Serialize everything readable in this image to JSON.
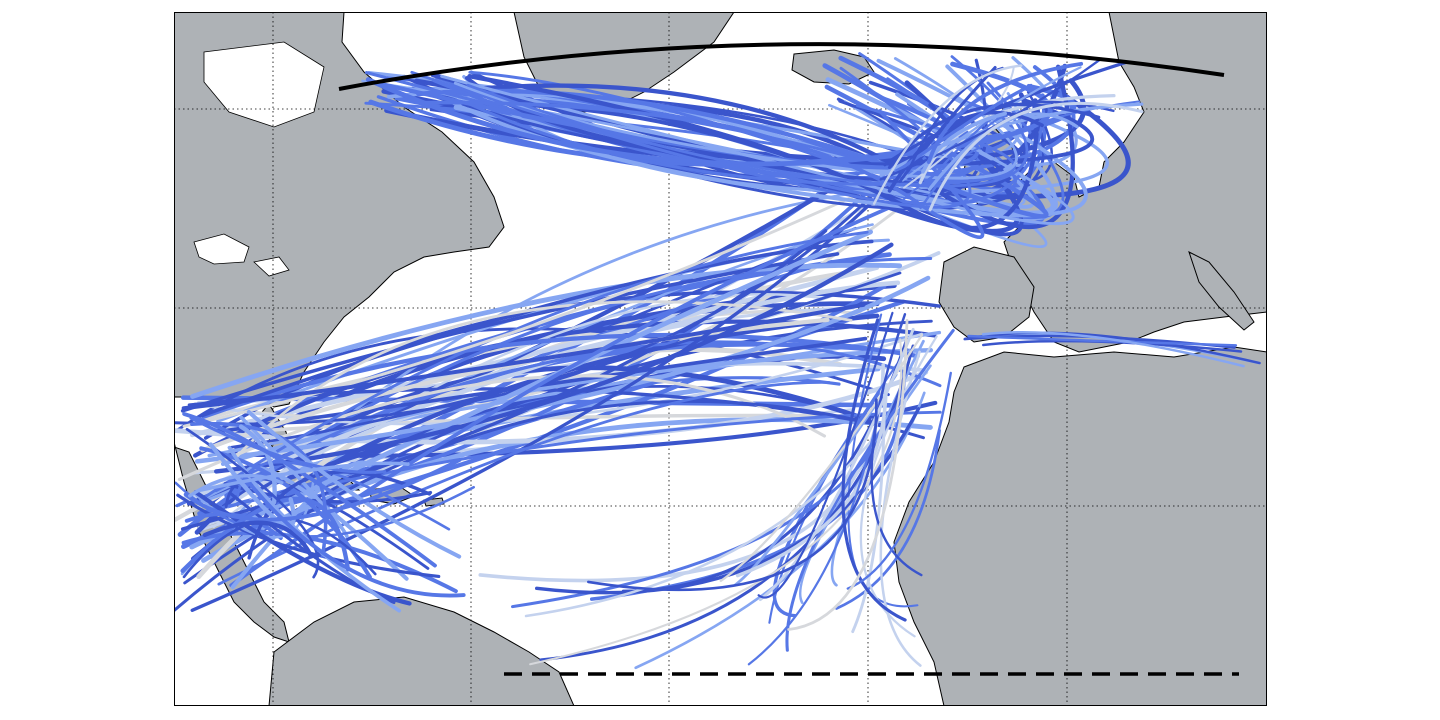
{
  "map": {
    "type": "ocean-trajectory-map",
    "region": "North Atlantic",
    "colors": {
      "land": "#aeb2b6",
      "ocean": "#ffffff",
      "coastline": "#000000",
      "trajectory_dark": "#3a55cc",
      "trajectory_medium": "#5677e6",
      "trajectory_light": "#86a6f2",
      "trajectory_pale": "#c4d2ee",
      "trajectory_grey": "#d6d8dc",
      "section_lines": "#000000"
    },
    "graticule": {
      "visible": true,
      "style": "dotted"
    },
    "northern_section": {
      "style": "solid",
      "color": "#000000"
    },
    "southern_section": {
      "style": "dashed",
      "color": "#000000"
    }
  }
}
